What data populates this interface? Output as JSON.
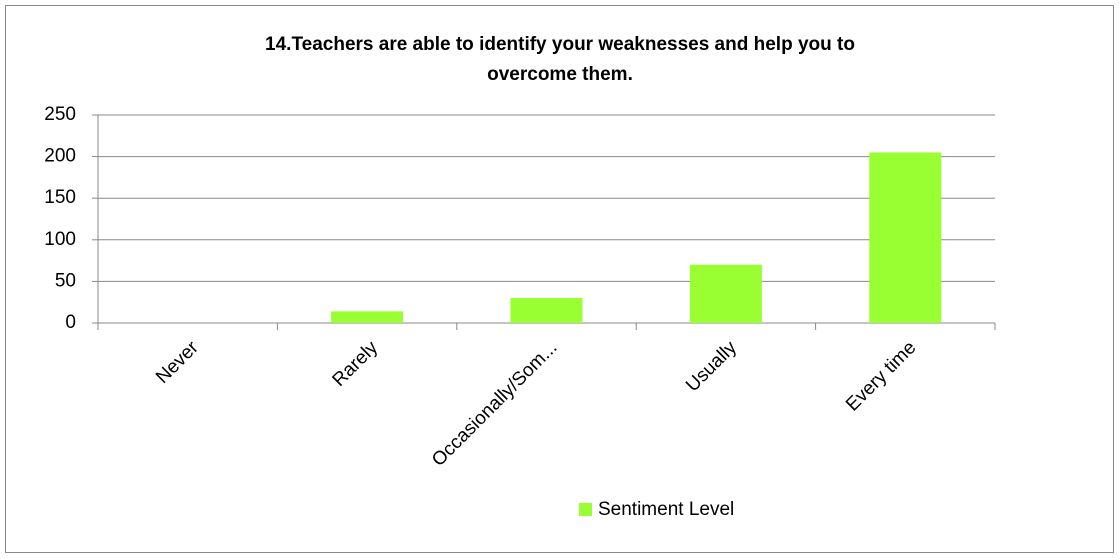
{
  "chart_data": {
    "type": "bar",
    "title": [
      "14.Teachers are able to identify your weaknesses and help you to",
      "overcome them."
    ],
    "categories": [
      "Never",
      "Rarely",
      "Occasionally/Som...",
      "Usually",
      "Every time"
    ],
    "series": [
      {
        "name": "Sentiment Level",
        "color": "#99ff33",
        "values": [
          0,
          14,
          30,
          70,
          205
        ]
      }
    ],
    "ylim": [
      0,
      250
    ],
    "yticks": [
      0,
      50,
      100,
      150,
      200,
      250
    ],
    "grid": true,
    "legend": "bottom"
  }
}
